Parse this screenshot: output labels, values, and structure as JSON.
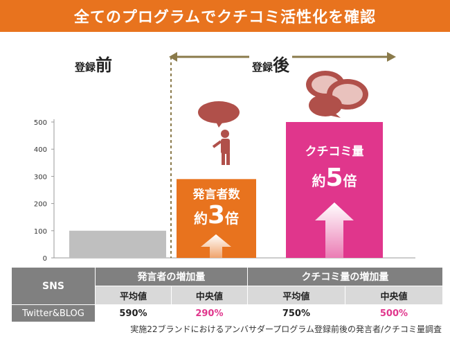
{
  "banner": {
    "title": "全てのプログラムでクチコミ活性化を確認"
  },
  "labels": {
    "before_prefix": "登録",
    "before_suffix": "前",
    "after_prefix": "登録",
    "after_suffix": "後"
  },
  "bars": {
    "orange_label": "発言者数",
    "orange_mult_prefix": "約",
    "orange_mult_num": "3",
    "orange_mult_suffix": "倍",
    "pink_label": "クチコミ量",
    "pink_mult_prefix": "約",
    "pink_mult_num": "5",
    "pink_mult_suffix": "倍"
  },
  "colors": {
    "banner": "#e8731e",
    "gray": "#bfbfbf",
    "orange": "#e8731e",
    "pink": "#e0368c",
    "dashed": "#8a7a4a"
  },
  "chart_data": {
    "type": "bar",
    "categories": [
      "登録前",
      "発言者数",
      "クチコミ量"
    ],
    "values": [
      100,
      290,
      500
    ],
    "ylim": [
      0,
      500
    ],
    "yticks": [
      0,
      100,
      200,
      300,
      400,
      500
    ],
    "title": "",
    "xlabel": "",
    "ylabel": ""
  },
  "table": {
    "sns_header": "SNS",
    "group1": "発言者の増加量",
    "group2": "クチコミ量の増加量",
    "sub": [
      "平均値",
      "中央値",
      "平均値",
      "中央値"
    ],
    "row_label": "Twitter&BLOG",
    "values": [
      "590%",
      "290%",
      "750%",
      "500%"
    ]
  },
  "footnote": "実施22ブランドにおけるアンバサダープログラム登録前後の発言者/クチコミ量調査"
}
